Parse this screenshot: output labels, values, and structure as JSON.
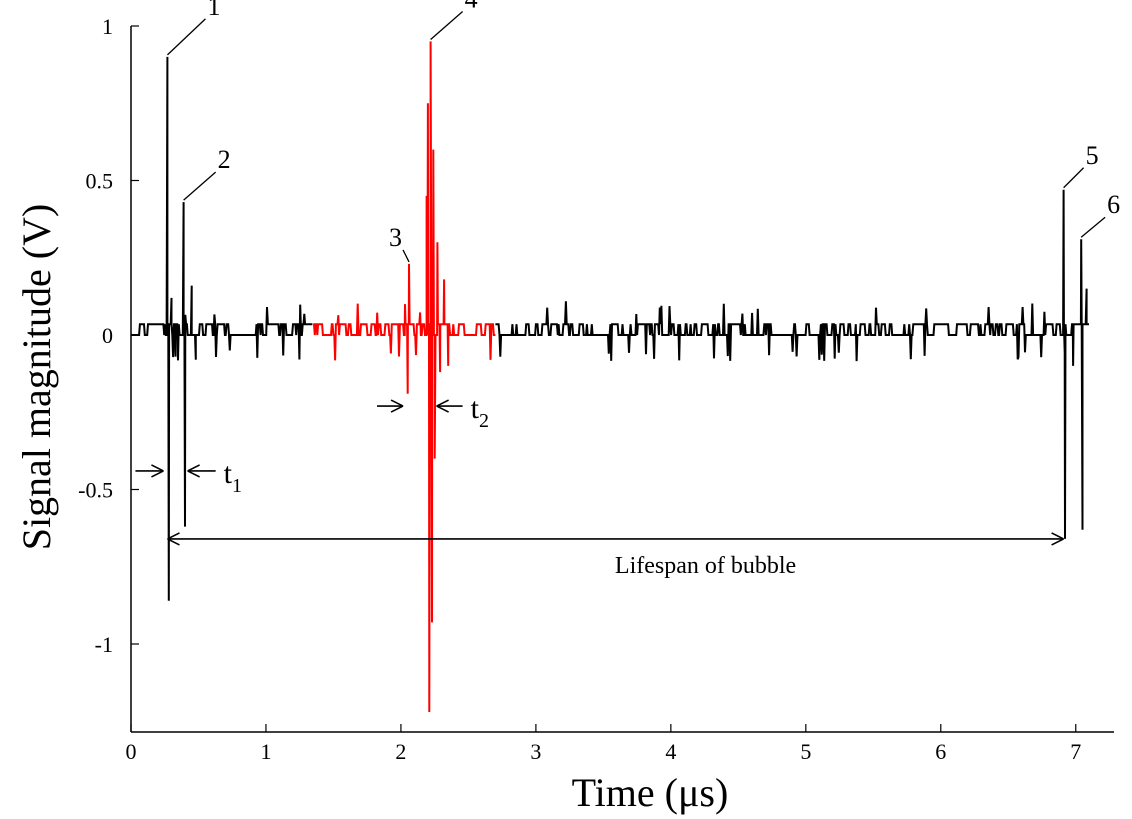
{
  "chart_data": {
    "type": "line",
    "xlabel": "Time (μs)",
    "ylabel": "Signal magnitude (V)",
    "xlim": [
      0,
      7.15
    ],
    "ylim": [
      -1.25,
      1.0
    ],
    "x_ticks": [
      0,
      1,
      2,
      3,
      4,
      5,
      6,
      7
    ],
    "x_tick_labels": [
      "0",
      "1",
      "2",
      "3",
      "4",
      "5",
      "6",
      "7"
    ],
    "y_ticks": [
      -1,
      -0.5,
      0,
      0.5,
      1
    ],
    "y_tick_labels": [
      "-1",
      "-0.5",
      "0",
      "0.5",
      "1"
    ],
    "grid": false,
    "colors": {
      "signal": "#000000",
      "highlight": "#ff0000"
    },
    "baseline": {
      "upper": 0.035,
      "lower": 0.0
    },
    "series": [
      {
        "color": "#000000",
        "segment_ranges": [
          [
            0.0,
            1.35
          ],
          [
            2.7,
            7.1
          ]
        ],
        "peaks": [
          {
            "x": 0.27,
            "y": 0.9
          },
          {
            "x": 0.28,
            "y": -0.86
          },
          {
            "x": 0.3,
            "y": 0.12
          },
          {
            "x": 0.33,
            "y": -0.07
          },
          {
            "x": 0.39,
            "y": 0.43
          },
          {
            "x": 0.4,
            "y": -0.62
          },
          {
            "x": 0.45,
            "y": 0.16
          },
          {
            "x": 0.48,
            "y": -0.08
          },
          {
            "x": 6.91,
            "y": 0.47
          },
          {
            "x": 6.92,
            "y": -0.66
          },
          {
            "x": 6.98,
            "y": -0.1
          },
          {
            "x": 7.04,
            "y": 0.31
          },
          {
            "x": 7.05,
            "y": -0.63
          },
          {
            "x": 7.08,
            "y": 0.15
          }
        ]
      },
      {
        "color": "#ff0000",
        "segment_ranges": [
          [
            1.35,
            2.7
          ]
        ],
        "peaks": [
          {
            "x": 2.03,
            "y": 0.1
          },
          {
            "x": 2.05,
            "y": -0.19
          },
          {
            "x": 2.06,
            "y": 0.23
          },
          {
            "x": 2.19,
            "y": 0.45
          },
          {
            "x": 2.2,
            "y": 0.75
          },
          {
            "x": 2.21,
            "y": -1.22
          },
          {
            "x": 2.22,
            "y": 0.95
          },
          {
            "x": 2.23,
            "y": -0.93
          },
          {
            "x": 2.24,
            "y": 0.6
          },
          {
            "x": 2.25,
            "y": -0.4
          },
          {
            "x": 2.27,
            "y": 0.3
          },
          {
            "x": 2.29,
            "y": -0.12
          },
          {
            "x": 2.32,
            "y": 0.18
          },
          {
            "x": 2.35,
            "y": -0.1
          }
        ]
      }
    ],
    "annotations": {
      "markers": [
        {
          "label": "1",
          "x": 0.27,
          "y": 0.9
        },
        {
          "label": "2",
          "x": 0.39,
          "y": 0.43
        },
        {
          "label": "3",
          "x": 2.06,
          "y": 0.23
        },
        {
          "label": "4",
          "x": 2.22,
          "y": 0.95
        },
        {
          "label": "5",
          "x": 6.91,
          "y": 0.47
        },
        {
          "label": "6",
          "x": 7.04,
          "y": 0.31
        }
      ],
      "t1": {
        "label": "t",
        "sub": "1",
        "x_from": 0.27,
        "x_to": 0.39,
        "y": -0.44
      },
      "t2": {
        "label": "t",
        "sub": "2",
        "x_from": 2.06,
        "x_to": 2.22,
        "y": -0.23
      },
      "lifespan": {
        "label": "Lifespan of bubble",
        "x_from": 0.3,
        "x_to": 6.91,
        "y": -0.66
      }
    }
  }
}
